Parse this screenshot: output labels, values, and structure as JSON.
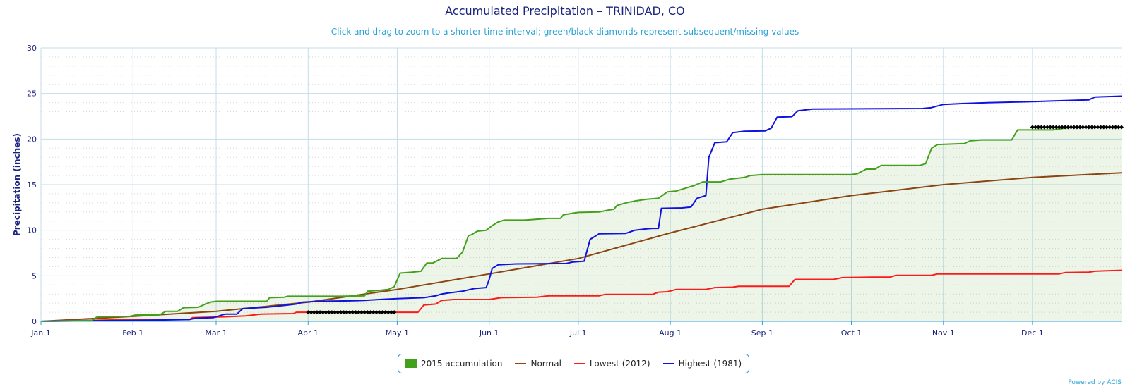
{
  "chart_data": {
    "type": "line",
    "title": "Accumulated Precipitation – TRINIDAD, CO",
    "subtitle": "Click and drag to zoom to a shorter time interval; green/black diamonds represent subsequent/missing values",
    "xlabel": "",
    "ylabel": "Precipitation (inches)",
    "ylim": [
      0,
      30
    ],
    "yticks": [
      0,
      5,
      10,
      15,
      20,
      25,
      30
    ],
    "xlim": [
      "2015-01-01",
      "2015-12-31"
    ],
    "xticks": [
      {
        "date": "2015-01-01",
        "label": "Jan 1"
      },
      {
        "date": "2015-02-01",
        "label": "Feb 1"
      },
      {
        "date": "2015-03-01",
        "label": "Mar 1"
      },
      {
        "date": "2015-04-01",
        "label": "Apr 1"
      },
      {
        "date": "2015-05-01",
        "label": "May 1"
      },
      {
        "date": "2015-06-01",
        "label": "Jun 1"
      },
      {
        "date": "2015-07-01",
        "label": "Jul 1"
      },
      {
        "date": "2015-08-01",
        "label": "Aug 1"
      },
      {
        "date": "2015-09-01",
        "label": "Sep 1"
      },
      {
        "date": "2015-10-01",
        "label": "Oct 1"
      },
      {
        "date": "2015-11-01",
        "label": "Nov 1"
      },
      {
        "date": "2015-12-01",
        "label": "Dec 1"
      }
    ],
    "grid": true,
    "legend_position": "bottom-center",
    "series": [
      {
        "name": "2015 accumulation",
        "color": "#43a01a",
        "fill": true,
        "points": [
          [
            "2015-01-01",
            0
          ],
          [
            "2015-01-18",
            0.1
          ],
          [
            "2015-01-20",
            0.5
          ],
          [
            "2015-01-31",
            0.55
          ],
          [
            "2015-02-02",
            0.7
          ],
          [
            "2015-02-10",
            0.7
          ],
          [
            "2015-02-12",
            1.1
          ],
          [
            "2015-02-16",
            1.1
          ],
          [
            "2015-02-18",
            1.5
          ],
          [
            "2015-02-23",
            1.55
          ],
          [
            "2015-02-25",
            1.85
          ],
          [
            "2015-02-27",
            2.1
          ],
          [
            "2015-03-01",
            2.2
          ],
          [
            "2015-03-18",
            2.2
          ],
          [
            "2015-03-19",
            2.6
          ],
          [
            "2015-03-24",
            2.65
          ],
          [
            "2015-03-25",
            2.75
          ],
          [
            "2015-04-12",
            2.75
          ],
          [
            "2015-04-20",
            2.8
          ],
          [
            "2015-04-21",
            3.3
          ],
          [
            "2015-04-25",
            3.4
          ],
          [
            "2015-04-28",
            3.5
          ],
          [
            "2015-04-30",
            3.8
          ],
          [
            "2015-05-02",
            5.3
          ],
          [
            "2015-05-06",
            5.4
          ],
          [
            "2015-05-09",
            5.5
          ],
          [
            "2015-05-11",
            6.4
          ],
          [
            "2015-05-13",
            6.4
          ],
          [
            "2015-05-16",
            6.9
          ],
          [
            "2015-05-21",
            6.9
          ],
          [
            "2015-05-23",
            7.6
          ],
          [
            "2015-05-25",
            9.4
          ],
          [
            "2015-05-26",
            9.5
          ],
          [
            "2015-05-28",
            9.9
          ],
          [
            "2015-05-31",
            10.0
          ],
          [
            "2015-06-02",
            10.5
          ],
          [
            "2015-06-04",
            10.9
          ],
          [
            "2015-06-06",
            11.1
          ],
          [
            "2015-06-13",
            11.1
          ],
          [
            "2015-06-17",
            11.2
          ],
          [
            "2015-06-21",
            11.3
          ],
          [
            "2015-06-25",
            11.3
          ],
          [
            "2015-06-26",
            11.7
          ],
          [
            "2015-06-28",
            11.8
          ],
          [
            "2015-07-01",
            11.95
          ],
          [
            "2015-07-08",
            12.0
          ],
          [
            "2015-07-11",
            12.2
          ],
          [
            "2015-07-13",
            12.3
          ],
          [
            "2015-07-14",
            12.7
          ],
          [
            "2015-07-17",
            13.0
          ],
          [
            "2015-07-20",
            13.2
          ],
          [
            "2015-07-24",
            13.4
          ],
          [
            "2015-07-28",
            13.5
          ],
          [
            "2015-07-31",
            14.2
          ],
          [
            "2015-08-03",
            14.3
          ],
          [
            "2015-08-06",
            14.6
          ],
          [
            "2015-08-09",
            14.9
          ],
          [
            "2015-08-12",
            15.3
          ],
          [
            "2015-08-18",
            15.3
          ],
          [
            "2015-08-21",
            15.6
          ],
          [
            "2015-08-26",
            15.8
          ],
          [
            "2015-08-28",
            16.0
          ],
          [
            "2015-09-01",
            16.1
          ],
          [
            "2015-09-30",
            16.1
          ],
          [
            "2015-10-01",
            16.1
          ],
          [
            "2015-10-03",
            16.2
          ],
          [
            "2015-10-06",
            16.7
          ],
          [
            "2015-10-09",
            16.7
          ],
          [
            "2015-10-11",
            17.1
          ],
          [
            "2015-10-24",
            17.1
          ],
          [
            "2015-10-26",
            17.3
          ],
          [
            "2015-10-28",
            19.0
          ],
          [
            "2015-10-30",
            19.4
          ],
          [
            "2015-11-08",
            19.5
          ],
          [
            "2015-11-10",
            19.8
          ],
          [
            "2015-11-14",
            19.9
          ],
          [
            "2015-11-24",
            19.9
          ],
          [
            "2015-11-26",
            21.0
          ],
          [
            "2015-12-08",
            21.0
          ],
          [
            "2015-12-12",
            21.2
          ],
          [
            "2015-12-15",
            21.3
          ]
        ]
      },
      {
        "name": "Normal",
        "color": "#8b4513",
        "points": [
          [
            "2015-01-01",
            0
          ],
          [
            "2015-02-01",
            0.55
          ],
          [
            "2015-03-01",
            1.1
          ],
          [
            "2015-04-01",
            2.1
          ],
          [
            "2015-05-01",
            3.5
          ],
          [
            "2015-06-01",
            5.2
          ],
          [
            "2015-07-01",
            6.9
          ],
          [
            "2015-08-01",
            9.7
          ],
          [
            "2015-09-01",
            12.3
          ],
          [
            "2015-10-01",
            13.8
          ],
          [
            "2015-11-01",
            15.0
          ],
          [
            "2015-12-01",
            15.8
          ],
          [
            "2015-12-31",
            16.3
          ]
        ]
      },
      {
        "name": "Lowest (2012)",
        "color": "#ff1a1a",
        "points": [
          [
            "2015-01-01",
            0
          ],
          [
            "2015-02-01",
            0.2
          ],
          [
            "2015-02-20",
            0.2
          ],
          [
            "2015-02-21",
            0.4
          ],
          [
            "2015-03-04",
            0.5
          ],
          [
            "2015-03-11",
            0.6
          ],
          [
            "2015-03-16",
            0.8
          ],
          [
            "2015-03-27",
            0.85
          ],
          [
            "2015-03-28",
            1.0
          ],
          [
            "2015-05-08",
            1.0
          ],
          [
            "2015-05-10",
            1.8
          ],
          [
            "2015-05-14",
            1.9
          ],
          [
            "2015-05-16",
            2.3
          ],
          [
            "2015-05-20",
            2.4
          ],
          [
            "2015-06-01",
            2.4
          ],
          [
            "2015-06-05",
            2.6
          ],
          [
            "2015-06-17",
            2.65
          ],
          [
            "2015-06-21",
            2.8
          ],
          [
            "2015-07-08",
            2.8
          ],
          [
            "2015-07-10",
            2.95
          ],
          [
            "2015-07-26",
            2.95
          ],
          [
            "2015-07-28",
            3.2
          ],
          [
            "2015-07-31",
            3.25
          ],
          [
            "2015-08-03",
            3.5
          ],
          [
            "2015-08-13",
            3.5
          ],
          [
            "2015-08-16",
            3.7
          ],
          [
            "2015-08-22",
            3.75
          ],
          [
            "2015-08-24",
            3.85
          ],
          [
            "2015-09-10",
            3.85
          ],
          [
            "2015-09-12",
            4.6
          ],
          [
            "2015-09-25",
            4.6
          ],
          [
            "2015-09-28",
            4.8
          ],
          [
            "2015-10-08",
            4.85
          ],
          [
            "2015-10-14",
            4.85
          ],
          [
            "2015-10-16",
            5.05
          ],
          [
            "2015-10-28",
            5.05
          ],
          [
            "2015-10-30",
            5.2
          ],
          [
            "2015-12-10",
            5.2
          ],
          [
            "2015-12-12",
            5.35
          ],
          [
            "2015-12-20",
            5.4
          ],
          [
            "2015-12-22",
            5.5
          ],
          [
            "2015-12-26",
            5.55
          ],
          [
            "2015-12-31",
            5.6
          ]
        ]
      },
      {
        "name": "Highest (1981)",
        "color": "#1010e0",
        "points": [
          [
            "2015-01-01",
            0
          ],
          [
            "2015-02-01",
            0.1
          ],
          [
            "2015-02-10",
            0.15
          ],
          [
            "2015-02-20",
            0.2
          ],
          [
            "2015-02-22",
            0.35
          ],
          [
            "2015-02-28",
            0.4
          ],
          [
            "2015-03-04",
            0.8
          ],
          [
            "2015-03-08",
            0.8
          ],
          [
            "2015-03-10",
            1.4
          ],
          [
            "2015-03-18",
            1.55
          ],
          [
            "2015-03-24",
            1.75
          ],
          [
            "2015-03-28",
            1.9
          ],
          [
            "2015-03-30",
            2.1
          ],
          [
            "2015-04-05",
            2.2
          ],
          [
            "2015-04-15",
            2.25
          ],
          [
            "2015-04-20",
            2.3
          ],
          [
            "2015-04-25",
            2.4
          ],
          [
            "2015-05-01",
            2.5
          ],
          [
            "2015-05-10",
            2.6
          ],
          [
            "2015-05-14",
            2.8
          ],
          [
            "2015-05-16",
            3.0
          ],
          [
            "2015-05-18",
            3.1
          ],
          [
            "2015-05-23",
            3.3
          ],
          [
            "2015-05-27",
            3.6
          ],
          [
            "2015-05-31",
            3.7
          ],
          [
            "2015-06-01",
            4.6
          ],
          [
            "2015-06-02",
            5.8
          ],
          [
            "2015-06-03",
            6.0
          ],
          [
            "2015-06-04",
            6.2
          ],
          [
            "2015-06-10",
            6.3
          ],
          [
            "2015-06-27",
            6.35
          ],
          [
            "2015-06-29",
            6.5
          ],
          [
            "2015-07-03",
            6.6
          ],
          [
            "2015-07-05",
            9.0
          ],
          [
            "2015-07-08",
            9.6
          ],
          [
            "2015-07-17",
            9.65
          ],
          [
            "2015-07-20",
            10.0
          ],
          [
            "2015-07-24",
            10.15
          ],
          [
            "2015-07-26",
            10.2
          ],
          [
            "2015-07-28",
            10.2
          ],
          [
            "2015-07-29",
            12.4
          ],
          [
            "2015-08-05",
            12.45
          ],
          [
            "2015-08-08",
            12.55
          ],
          [
            "2015-08-10",
            13.5
          ],
          [
            "2015-08-13",
            13.8
          ],
          [
            "2015-08-14",
            18.0
          ],
          [
            "2015-08-16",
            19.6
          ],
          [
            "2015-08-20",
            19.7
          ],
          [
            "2015-08-22",
            20.7
          ],
          [
            "2015-08-26",
            20.85
          ],
          [
            "2015-09-02",
            20.9
          ],
          [
            "2015-09-04",
            21.2
          ],
          [
            "2015-09-06",
            22.4
          ],
          [
            "2015-09-11",
            22.45
          ],
          [
            "2015-09-13",
            23.1
          ],
          [
            "2015-09-18",
            23.3
          ],
          [
            "2015-10-25",
            23.35
          ],
          [
            "2015-10-28",
            23.45
          ],
          [
            "2015-11-01",
            23.8
          ],
          [
            "2015-11-08",
            23.9
          ],
          [
            "2015-11-17",
            24.0
          ],
          [
            "2015-12-01",
            24.1
          ],
          [
            "2015-12-10",
            24.2
          ],
          [
            "2015-12-20",
            24.3
          ],
          [
            "2015-12-22",
            24.6
          ],
          [
            "2015-12-31",
            24.7
          ]
        ]
      }
    ],
    "missing_markers": [
      {
        "start": "2015-04-01",
        "end": "2015-04-30",
        "value": 1.0,
        "color": "#000000"
      },
      {
        "start": "2015-12-01",
        "end": "2015-12-31",
        "value": 21.3,
        "color": "#000000"
      }
    ]
  },
  "credit": "Powered by ACIS"
}
